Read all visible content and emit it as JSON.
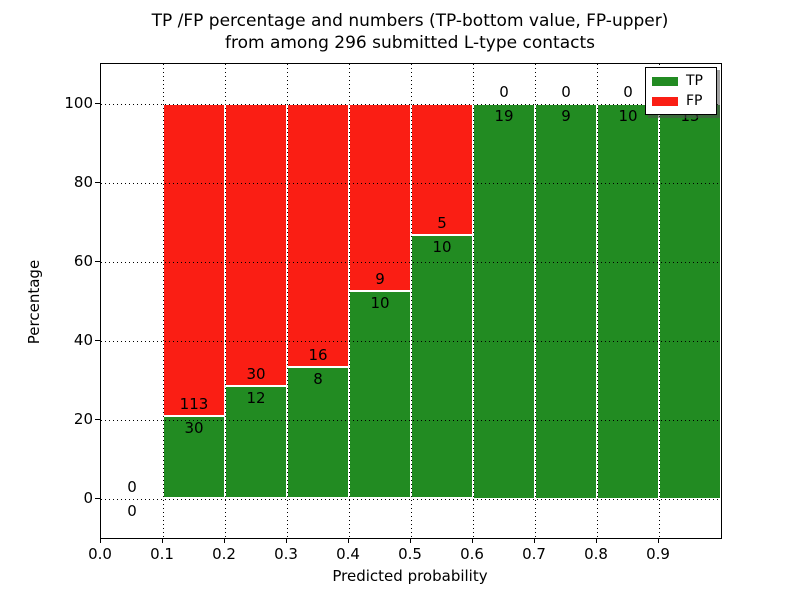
{
  "figure": {
    "title_line1": "TP /FP percentage and numbers (TP-bottom value, FP-upper)",
    "title_line2": "from among 296 submitted L-type contacts",
    "xlabel": "Predicted probability",
    "ylabel": "Percentage"
  },
  "legend": {
    "items": [
      {
        "label": "TP",
        "color": "#228b22"
      },
      {
        "label": "FP",
        "color": "#fa1e14"
      }
    ]
  },
  "chart_data": {
    "type": "bar",
    "stacked": true,
    "normalized": "percent",
    "title": "TP /FP percentage and numbers (TP-bottom value, FP-upper) from among 296 submitted L-type contacts",
    "xlabel": "Predicted probability",
    "ylabel": "Percentage",
    "total_contacts": 296,
    "bin_width": 0.1,
    "bin_starts": [
      0.0,
      0.1,
      0.2,
      0.3,
      0.4,
      0.5,
      0.6,
      0.7,
      0.8,
      0.9
    ],
    "series": [
      {
        "name": "TP",
        "color": "#228b22",
        "counts": [
          0,
          30,
          12,
          8,
          10,
          10,
          19,
          9,
          10,
          15
        ]
      },
      {
        "name": "FP",
        "color": "#fa1e14",
        "counts": [
          0,
          113,
          30,
          16,
          9,
          5,
          0,
          0,
          0,
          0
        ]
      }
    ],
    "tp_percent_by_bin": [
      0,
      20.98,
      28.57,
      33.33,
      52.63,
      66.67,
      100,
      100,
      100,
      100
    ],
    "xtick_labels": [
      "0.0",
      "0.1",
      "0.2",
      "0.3",
      "0.4",
      "0.5",
      "0.6",
      "0.7",
      "0.8",
      "0.9"
    ],
    "ytick_labels": [
      "0",
      "20",
      "40",
      "60",
      "80",
      "100"
    ],
    "yticks": [
      0,
      20,
      40,
      60,
      80,
      100
    ],
    "xlim": [
      0.0,
      1.0
    ],
    "ylim": [
      -10,
      110
    ],
    "grid": true,
    "grid_style": "dotted",
    "legend_position": "upper right"
  }
}
